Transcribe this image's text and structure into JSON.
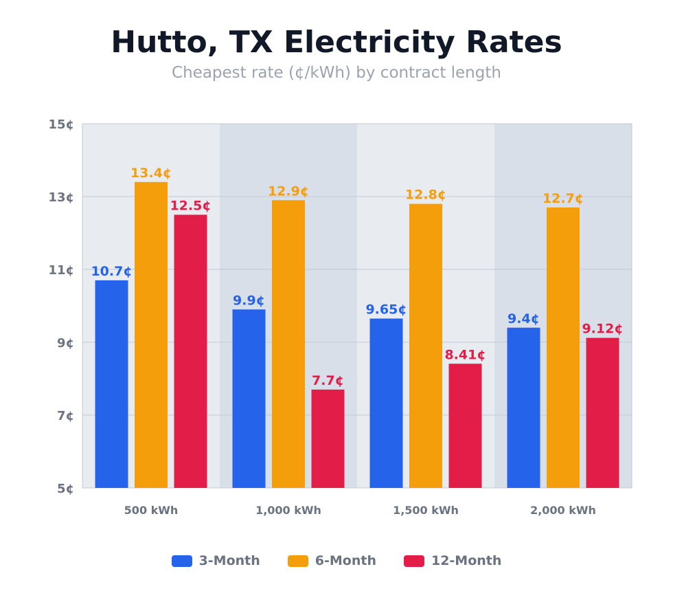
{
  "chart_data": {
    "type": "bar",
    "title": "Hutto, TX Electricity Rates",
    "subtitle": "Cheapest rate (¢/kWh) by contract length",
    "categories": [
      "500 kWh",
      "1,000 kWh",
      "1,500 kWh",
      "2,000 kWh"
    ],
    "series": [
      {
        "name": "3-Month",
        "color": "#2563eb",
        "values": [
          10.7,
          9.9,
          9.65,
          9.4
        ],
        "labels": [
          "10.7¢",
          "9.9¢",
          "9.65¢",
          "9.4¢"
        ]
      },
      {
        "name": "6-Month",
        "color": "#f59e0b",
        "values": [
          13.4,
          12.9,
          12.8,
          12.7
        ],
        "labels": [
          "13.4¢",
          "12.9¢",
          "12.8¢",
          "12.7¢"
        ]
      },
      {
        "name": "12-Month",
        "color": "#e11d48",
        "values": [
          12.5,
          7.7,
          8.41,
          9.12
        ],
        "labels": [
          "12.5¢",
          "7.7¢",
          "8.41¢",
          "9.12¢"
        ]
      }
    ],
    "ylim": [
      5,
      15
    ],
    "yticks": [
      5,
      7,
      9,
      11,
      13,
      15
    ],
    "ytick_labels": [
      "5¢",
      "7¢",
      "9¢",
      "11¢",
      "13¢",
      "15¢"
    ],
    "grid": true,
    "legend": "bottom",
    "band_colors": [
      "#e8ebf0",
      "#d9dfe8"
    ]
  }
}
